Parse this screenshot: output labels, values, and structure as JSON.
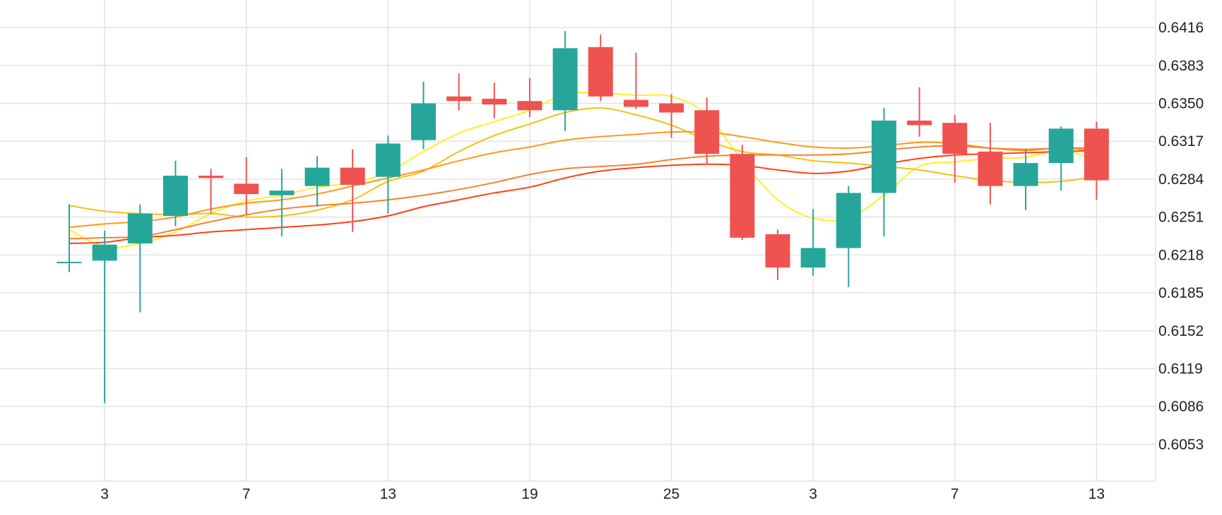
{
  "chart_data": {
    "type": "candlestick",
    "y_axis": {
      "position": "right",
      "ticks": [
        "0.6053",
        "0.6086",
        "0.6119",
        "0.6152",
        "0.6185",
        "0.6218",
        "0.6251",
        "0.6284",
        "0.6317",
        "0.6350",
        "0.6383",
        "0.6416"
      ],
      "range": [
        0.6021,
        0.644
      ]
    },
    "x_axis": {
      "ticks": [
        {
          "index": 1,
          "label": "3"
        },
        {
          "index": 5,
          "label": "7"
        },
        {
          "index": 9,
          "label": "13"
        },
        {
          "index": 13,
          "label": "19"
        },
        {
          "index": 17,
          "label": "25"
        },
        {
          "index": 21,
          "label": "3"
        },
        {
          "index": 25,
          "label": "7"
        },
        {
          "index": 29,
          "label": "13"
        }
      ]
    },
    "grid": true,
    "colors": {
      "up": "#26a69a",
      "down": "#ef5350",
      "grid": "#e3e3e3",
      "text": "#222222"
    },
    "candles": [
      {
        "o": 0.6212,
        "h": 0.6262,
        "l": 0.6203,
        "c": 0.6212
      },
      {
        "o": 0.6213,
        "h": 0.6239,
        "l": 0.6089,
        "c": 0.6227
      },
      {
        "o": 0.6228,
        "h": 0.6262,
        "l": 0.6168,
        "c": 0.6254
      },
      {
        "o": 0.6252,
        "h": 0.63,
        "l": 0.6243,
        "c": 0.6287
      },
      {
        "o": 0.6287,
        "h": 0.6293,
        "l": 0.6254,
        "c": 0.6285
      },
      {
        "o": 0.628,
        "h": 0.6303,
        "l": 0.6253,
        "c": 0.6271
      },
      {
        "o": 0.627,
        "h": 0.6293,
        "l": 0.6234,
        "c": 0.6274
      },
      {
        "o": 0.6278,
        "h": 0.6304,
        "l": 0.626,
        "c": 0.6294
      },
      {
        "o": 0.6294,
        "h": 0.631,
        "l": 0.6238,
        "c": 0.6279
      },
      {
        "o": 0.6286,
        "h": 0.6322,
        "l": 0.6254,
        "c": 0.6315
      },
      {
        "o": 0.6318,
        "h": 0.6369,
        "l": 0.631,
        "c": 0.635
      },
      {
        "o": 0.6356,
        "h": 0.6376,
        "l": 0.6344,
        "c": 0.6352
      },
      {
        "o": 0.6354,
        "h": 0.6368,
        "l": 0.6337,
        "c": 0.6349
      },
      {
        "o": 0.6352,
        "h": 0.6372,
        "l": 0.6338,
        "c": 0.6344
      },
      {
        "o": 0.6344,
        "h": 0.6413,
        "l": 0.6326,
        "c": 0.6398
      },
      {
        "o": 0.6399,
        "h": 0.641,
        "l": 0.6352,
        "c": 0.6356
      },
      {
        "o": 0.6353,
        "h": 0.6394,
        "l": 0.6345,
        "c": 0.6347
      },
      {
        "o": 0.635,
        "h": 0.6358,
        "l": 0.632,
        "c": 0.6342
      },
      {
        "o": 0.6344,
        "h": 0.6355,
        "l": 0.6297,
        "c": 0.6306
      },
      {
        "o": 0.6306,
        "h": 0.6314,
        "l": 0.6231,
        "c": 0.6233
      },
      {
        "o": 0.6236,
        "h": 0.624,
        "l": 0.6196,
        "c": 0.6207
      },
      {
        "o": 0.6207,
        "h": 0.6258,
        "l": 0.62,
        "c": 0.6224
      },
      {
        "o": 0.6224,
        "h": 0.6278,
        "l": 0.619,
        "c": 0.6272
      },
      {
        "o": 0.6272,
        "h": 0.6346,
        "l": 0.6234,
        "c": 0.6335
      },
      {
        "o": 0.6335,
        "h": 0.6364,
        "l": 0.6321,
        "c": 0.6331
      },
      {
        "o": 0.6333,
        "h": 0.634,
        "l": 0.6281,
        "c": 0.6306
      },
      {
        "o": 0.6308,
        "h": 0.6333,
        "l": 0.6262,
        "c": 0.6278
      },
      {
        "o": 0.6278,
        "h": 0.631,
        "l": 0.6257,
        "c": 0.6298
      },
      {
        "o": 0.6298,
        "h": 0.633,
        "l": 0.6274,
        "c": 0.6328
      },
      {
        "o": 0.6328,
        "h": 0.6334,
        "l": 0.6266,
        "c": 0.6283
      }
    ],
    "series": [
      {
        "color": "#ffee2a",
        "values": [
          {
            "i": 0,
            "v": 0.624
          },
          {
            "i": 1,
            "v": 0.6225
          },
          {
            "i": 2,
            "v": 0.6228
          },
          {
            "i": 3,
            "v": 0.6238
          },
          {
            "i": 4,
            "v": 0.6254
          },
          {
            "i": 5,
            "v": 0.6265
          },
          {
            "i": 6,
            "v": 0.627
          },
          {
            "i": 7,
            "v": 0.6277
          },
          {
            "i": 8,
            "v": 0.6281
          },
          {
            "i": 9,
            "v": 0.629
          },
          {
            "i": 10,
            "v": 0.6308
          },
          {
            "i": 11,
            "v": 0.6324
          },
          {
            "i": 12,
            "v": 0.6334
          },
          {
            "i": 13,
            "v": 0.6344
          },
          {
            "i": 14,
            "v": 0.6358
          },
          {
            "i": 15,
            "v": 0.6359
          },
          {
            "i": 16,
            "v": 0.6357
          },
          {
            "i": 17,
            "v": 0.6356
          },
          {
            "i": 18,
            "v": 0.634
          },
          {
            "i": 19,
            "v": 0.63
          },
          {
            "i": 20,
            "v": 0.6266
          },
          {
            "i": 21,
            "v": 0.625
          },
          {
            "i": 22,
            "v": 0.625
          },
          {
            "i": 23,
            "v": 0.627
          },
          {
            "i": 24,
            "v": 0.6295
          },
          {
            "i": 25,
            "v": 0.6299
          },
          {
            "i": 26,
            "v": 0.6302
          },
          {
            "i": 27,
            "v": 0.6303
          },
          {
            "i": 28,
            "v": 0.6309
          },
          {
            "i": 29,
            "v": 0.63
          }
        ]
      },
      {
        "color": "#f5c014",
        "values": [
          {
            "i": 0,
            "v": 0.6261
          },
          {
            "i": 1,
            "v": 0.6256
          },
          {
            "i": 2,
            "v": 0.6254
          },
          {
            "i": 3,
            "v": 0.6253
          },
          {
            "i": 4,
            "v": 0.6254
          },
          {
            "i": 5,
            "v": 0.6251
          },
          {
            "i": 6,
            "v": 0.6252
          },
          {
            "i": 7,
            "v": 0.6257
          },
          {
            "i": 8,
            "v": 0.6266
          },
          {
            "i": 9,
            "v": 0.6282
          },
          {
            "i": 10,
            "v": 0.6291
          },
          {
            "i": 11,
            "v": 0.6308
          },
          {
            "i": 12,
            "v": 0.6322
          },
          {
            "i": 13,
            "v": 0.6332
          },
          {
            "i": 14,
            "v": 0.6342
          },
          {
            "i": 15,
            "v": 0.6346
          },
          {
            "i": 16,
            "v": 0.634
          },
          {
            "i": 17,
            "v": 0.6331
          },
          {
            "i": 18,
            "v": 0.6318
          },
          {
            "i": 19,
            "v": 0.6308
          },
          {
            "i": 20,
            "v": 0.6305
          },
          {
            "i": 21,
            "v": 0.63
          },
          {
            "i": 22,
            "v": 0.6298
          },
          {
            "i": 23,
            "v": 0.6295
          },
          {
            "i": 24,
            "v": 0.6292
          },
          {
            "i": 25,
            "v": 0.6287
          },
          {
            "i": 26,
            "v": 0.6283
          },
          {
            "i": 27,
            "v": 0.6281
          },
          {
            "i": 28,
            "v": 0.6282
          },
          {
            "i": 29,
            "v": 0.6286
          }
        ]
      },
      {
        "color": "#ff9819",
        "values": [
          {
            "i": 0,
            "v": 0.6242
          },
          {
            "i": 1,
            "v": 0.6245
          },
          {
            "i": 2,
            "v": 0.6247
          },
          {
            "i": 3,
            "v": 0.6251
          },
          {
            "i": 4,
            "v": 0.6258
          },
          {
            "i": 5,
            "v": 0.6263
          },
          {
            "i": 6,
            "v": 0.6266
          },
          {
            "i": 7,
            "v": 0.6271
          },
          {
            "i": 8,
            "v": 0.6278
          },
          {
            "i": 9,
            "v": 0.6285
          },
          {
            "i": 10,
            "v": 0.6292
          },
          {
            "i": 11,
            "v": 0.63
          },
          {
            "i": 12,
            "v": 0.6307
          },
          {
            "i": 13,
            "v": 0.6312
          },
          {
            "i": 14,
            "v": 0.6318
          },
          {
            "i": 15,
            "v": 0.6321
          },
          {
            "i": 16,
            "v": 0.6323
          },
          {
            "i": 17,
            "v": 0.6325
          },
          {
            "i": 18,
            "v": 0.6325
          },
          {
            "i": 19,
            "v": 0.6321
          },
          {
            "i": 20,
            "v": 0.6316
          },
          {
            "i": 21,
            "v": 0.6312
          },
          {
            "i": 22,
            "v": 0.6311
          },
          {
            "i": 23,
            "v": 0.6313
          },
          {
            "i": 24,
            "v": 0.6316
          },
          {
            "i": 25,
            "v": 0.6315
          },
          {
            "i": 26,
            "v": 0.6311
          },
          {
            "i": 27,
            "v": 0.6309
          },
          {
            "i": 28,
            "v": 0.6311
          },
          {
            "i": 29,
            "v": 0.6309
          }
        ]
      },
      {
        "color": "#f5832a",
        "values": [
          {
            "i": 0,
            "v": 0.6232
          },
          {
            "i": 1,
            "v": 0.6233
          },
          {
            "i": 2,
            "v": 0.6234
          },
          {
            "i": 3,
            "v": 0.624
          },
          {
            "i": 4,
            "v": 0.6247
          },
          {
            "i": 5,
            "v": 0.6253
          },
          {
            "i": 6,
            "v": 0.6258
          },
          {
            "i": 7,
            "v": 0.6261
          },
          {
            "i": 8,
            "v": 0.6263
          },
          {
            "i": 9,
            "v": 0.6266
          },
          {
            "i": 10,
            "v": 0.627
          },
          {
            "i": 11,
            "v": 0.6275
          },
          {
            "i": 12,
            "v": 0.6281
          },
          {
            "i": 13,
            "v": 0.6288
          },
          {
            "i": 14,
            "v": 0.6293
          },
          {
            "i": 15,
            "v": 0.6295
          },
          {
            "i": 16,
            "v": 0.6297
          },
          {
            "i": 17,
            "v": 0.6301
          },
          {
            "i": 18,
            "v": 0.6304
          },
          {
            "i": 19,
            "v": 0.6305
          },
          {
            "i": 20,
            "v": 0.6305
          },
          {
            "i": 21,
            "v": 0.6305
          },
          {
            "i": 22,
            "v": 0.6306
          },
          {
            "i": 23,
            "v": 0.6309
          },
          {
            "i": 24,
            "v": 0.6312
          },
          {
            "i": 25,
            "v": 0.6313
          },
          {
            "i": 26,
            "v": 0.6311
          },
          {
            "i": 27,
            "v": 0.631
          },
          {
            "i": 28,
            "v": 0.6311
          },
          {
            "i": 29,
            "v": 0.6311
          }
        ]
      },
      {
        "color": "#ff3f17",
        "values": [
          {
            "i": 0,
            "v": 0.6228
          },
          {
            "i": 1,
            "v": 0.6229
          },
          {
            "i": 2,
            "v": 0.6233
          },
          {
            "i": 3,
            "v": 0.6235
          },
          {
            "i": 4,
            "v": 0.6238
          },
          {
            "i": 5,
            "v": 0.624
          },
          {
            "i": 6,
            "v": 0.6242
          },
          {
            "i": 7,
            "v": 0.6244
          },
          {
            "i": 8,
            "v": 0.6247
          },
          {
            "i": 9,
            "v": 0.6252
          },
          {
            "i": 10,
            "v": 0.626
          },
          {
            "i": 11,
            "v": 0.6266
          },
          {
            "i": 12,
            "v": 0.6272
          },
          {
            "i": 13,
            "v": 0.6277
          },
          {
            "i": 14,
            "v": 0.6285
          },
          {
            "i": 15,
            "v": 0.6291
          },
          {
            "i": 16,
            "v": 0.6294
          },
          {
            "i": 17,
            "v": 0.6296
          },
          {
            "i": 18,
            "v": 0.6297
          },
          {
            "i": 19,
            "v": 0.6296
          },
          {
            "i": 20,
            "v": 0.6292
          },
          {
            "i": 21,
            "v": 0.6289
          },
          {
            "i": 22,
            "v": 0.6291
          },
          {
            "i": 23,
            "v": 0.6297
          },
          {
            "i": 24,
            "v": 0.6302
          },
          {
            "i": 25,
            "v": 0.6305
          },
          {
            "i": 26,
            "v": 0.6306
          },
          {
            "i": 27,
            "v": 0.6307
          },
          {
            "i": 28,
            "v": 0.6308
          },
          {
            "i": 29,
            "v": 0.6309
          }
        ]
      }
    ]
  }
}
